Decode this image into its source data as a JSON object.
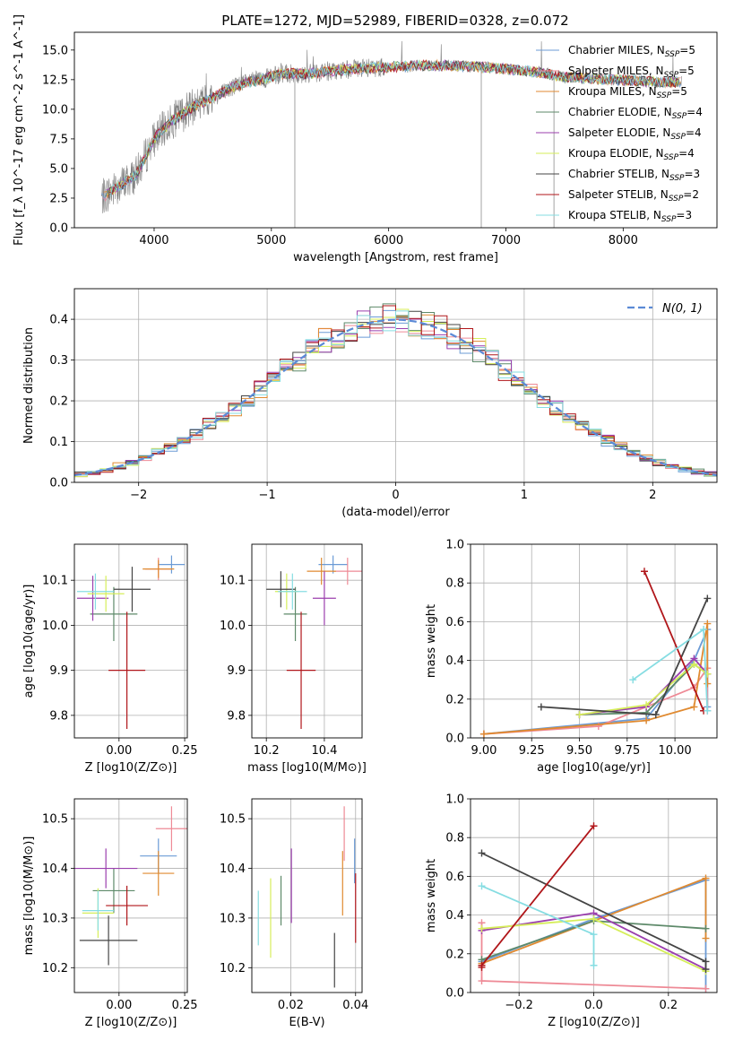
{
  "figure_title": "PLATE=1272, MJD=52989, FIBERID=0328, z=0.072",
  "series_names": [
    "Chabrier MILES, N_SSP=5",
    "Salpeter MILES, N_SSP=5",
    "Kroupa MILES, N_SSP=5",
    "Chabrier ELODIE, N_SSP=4",
    "Salpeter ELODIE, N_SSP=4",
    "Kroupa ELODIE, N_SSP=4",
    "Chabrier STELIB, N_SSP=3",
    "Salpeter STELIB, N_SSP=2",
    "Kroupa STELIB, N_SSP=3"
  ],
  "series_colors": [
    "#6b9bd6",
    "#ee8a96",
    "#e08a30",
    "#5e8a6a",
    "#9b3fae",
    "#d6ee5a",
    "#444444",
    "#b0161a",
    "#86dde2"
  ],
  "chart_data": [
    {
      "id": "spectrum",
      "type": "line",
      "title": "PLATE=1272, MJD=52989, FIBERID=0328, z=0.072",
      "xlabel": "wavelength [Angstrom, rest frame]",
      "ylabel": "Flux [f_λ 10^-17 erg cm^-2 s^-1 A^-1]",
      "xlim": [
        3320,
        8800
      ],
      "ylim": [
        0,
        16.5
      ],
      "xticks": [
        4000,
        5000,
        6000,
        7000,
        8000
      ],
      "yticks": [
        0.0,
        2.5,
        5.0,
        7.5,
        10.0,
        12.5,
        15.0
      ],
      "ytick_labels": [
        "0.0",
        "2.5",
        "5.0",
        "7.5",
        "10.0",
        "12.5",
        "15.0"
      ],
      "grid": false,
      "legend": "upper right",
      "x": [
        3550,
        3700,
        3850,
        4000,
        4150,
        4300,
        4500,
        4700,
        4900,
        5100,
        5300,
        5500,
        5700,
        5900,
        6100,
        6300,
        6500,
        6700,
        6900,
        7100,
        7300,
        7500,
        7700,
        7900,
        8100,
        8300,
        8500
      ],
      "y": [
        2.5,
        3.5,
        4.5,
        7.5,
        9.0,
        10.0,
        11.0,
        12.0,
        12.5,
        13.0,
        13.0,
        13.2,
        13.4,
        13.5,
        13.6,
        13.7,
        13.7,
        13.6,
        13.5,
        13.3,
        13.1,
        12.7,
        12.6,
        12.5,
        12.4,
        12.3,
        12.3
      ],
      "spikes": [
        {
          "x": 5200,
          "y": 0
        },
        {
          "x": 6790,
          "y": 0
        },
        {
          "x": 7410,
          "y": 0
        }
      ]
    },
    {
      "id": "residuals",
      "type": "line",
      "xlabel": "(data-model)/error",
      "ylabel": "Normed distribution",
      "xlim": [
        -2.5,
        2.5
      ],
      "ylim": [
        0,
        0.475
      ],
      "xticks": [
        -2,
        -1,
        0,
        1,
        2
      ],
      "xtick_labels": [
        "−2",
        "−1",
        "0",
        "1",
        "2"
      ],
      "yticks": [
        0.0,
        0.1,
        0.2,
        0.3,
        0.4
      ],
      "ytick_labels": [
        "0.0",
        "0.1",
        "0.2",
        "0.3",
        "0.4"
      ],
      "grid": true,
      "legend": "upper right",
      "gaussian_label": "N(0, 1)",
      "bins_from": -2.5,
      "bin_width": 0.1
    },
    {
      "id": "age_vs_Z",
      "type": "scatter",
      "xlabel": "Z [log10(Z/Z⊙)]",
      "ylabel": "age [log10(age/yr)]",
      "xlim": [
        -0.17,
        0.26
      ],
      "ylim": [
        9.75,
        10.18
      ],
      "xticks": [
        0.0,
        0.25
      ],
      "xtick_labels": [
        "0.00",
        "0.25"
      ],
      "yticks": [
        9.8,
        9.9,
        10.0,
        10.1
      ],
      "ytick_labels": [
        "9.8",
        "9.9",
        "10.0",
        "10.1"
      ],
      "grid": true,
      "points": [
        {
          "x": 0.2,
          "y": 10.135,
          "xerr": 0.05,
          "yerr": 0.02
        },
        {
          "x": 0.15,
          "y": 10.125,
          "xerr": 0.05,
          "yerr": 0.025
        },
        {
          "x": 0.15,
          "y": 10.125,
          "xerr": 0.06,
          "yerr": 0.02
        },
        {
          "x": -0.02,
          "y": 10.025,
          "xerr": 0.09,
          "yerr": 0.06
        },
        {
          "x": -0.1,
          "y": 10.06,
          "xerr": 0.06,
          "yerr": 0.05
        },
        {
          "x": -0.05,
          "y": 10.07,
          "xerr": 0.07,
          "yerr": 0.04
        },
        {
          "x": 0.05,
          "y": 10.08,
          "xerr": 0.07,
          "yerr": 0.05
        },
        {
          "x": 0.03,
          "y": 9.9,
          "xerr": 0.07,
          "yerr": 0.13
        },
        {
          "x": -0.09,
          "y": 10.075,
          "xerr": 0.07,
          "yerr": 0.04
        }
      ]
    },
    {
      "id": "age_vs_mass",
      "type": "scatter",
      "xlabel": "mass [log10(M/M⊙)]",
      "ylabel": "",
      "xlim": [
        10.15,
        10.53
      ],
      "ylim": [
        9.75,
        10.18
      ],
      "xticks": [
        10.2,
        10.4
      ],
      "xtick_labels": [
        "10.2",
        "10.4"
      ],
      "yticks": [
        9.8,
        9.9,
        10.0,
        10.1
      ],
      "ytick_labels": [
        "9.8",
        "9.9",
        "10.0",
        "10.1"
      ],
      "grid": true,
      "points": [
        {
          "x": 10.43,
          "y": 10.135,
          "xerr": 0.05,
          "yerr": 0.02
        },
        {
          "x": 10.48,
          "y": 10.12,
          "xerr": 0.05,
          "yerr": 0.03
        },
        {
          "x": 10.39,
          "y": 10.12,
          "xerr": 0.05,
          "yerr": 0.03
        },
        {
          "x": 10.3,
          "y": 10.025,
          "xerr": 0.04,
          "yerr": 0.06
        },
        {
          "x": 10.4,
          "y": 10.06,
          "xerr": 0.04,
          "yerr": 0.06
        },
        {
          "x": 10.27,
          "y": 10.075,
          "xerr": 0.04,
          "yerr": 0.04
        },
        {
          "x": 10.25,
          "y": 10.08,
          "xerr": 0.05,
          "yerr": 0.04
        },
        {
          "x": 10.32,
          "y": 9.9,
          "xerr": 0.05,
          "yerr": 0.13
        },
        {
          "x": 10.29,
          "y": 10.075,
          "xerr": 0.05,
          "yerr": 0.04
        }
      ]
    },
    {
      "id": "mass_weight_vs_age",
      "type": "line",
      "xlabel": "age [log10(age/yr)]",
      "ylabel": "mass weight",
      "xlim": [
        8.93,
        10.22
      ],
      "ylim": [
        0,
        1
      ],
      "xticks": [
        9.0,
        9.25,
        9.5,
        9.75,
        10.0
      ],
      "xtick_labels": [
        "9.00",
        "9.25",
        "9.50",
        "9.75",
        "10.00"
      ],
      "yticks": [
        0.0,
        0.2,
        0.4,
        0.6,
        0.8,
        1.0
      ],
      "ytick_labels": [
        "0.0",
        "0.2",
        "0.4",
        "0.6",
        "0.8",
        "1.0"
      ],
      "grid": true,
      "series": [
        {
          "x": [
            9.0,
            9.85,
            10.1,
            10.17,
            10.17
          ],
          "y": [
            0.02,
            0.1,
            0.4,
            0.56,
            0.16
          ]
        },
        {
          "x": [
            9.0,
            9.6,
            10.1,
            10.17,
            10.17
          ],
          "y": [
            0.02,
            0.06,
            0.26,
            0.36,
            0.14
          ]
        },
        {
          "x": [
            9.0,
            9.85,
            10.1,
            10.17,
            10.17
          ],
          "y": [
            0.02,
            0.09,
            0.16,
            0.59,
            0.28
          ]
        },
        {
          "x": [
            9.5,
            9.85,
            10.1,
            10.17
          ],
          "y": [
            0.12,
            0.13,
            0.38,
            0.33
          ]
        },
        {
          "x": [
            9.5,
            9.85,
            10.1,
            10.17
          ],
          "y": [
            0.12,
            0.16,
            0.41,
            0.33
          ]
        },
        {
          "x": [
            9.5,
            9.85,
            10.1,
            10.17
          ],
          "y": [
            0.12,
            0.17,
            0.38,
            0.33
          ]
        },
        {
          "x": [
            9.3,
            9.9,
            10.17
          ],
          "y": [
            0.16,
            0.12,
            0.72
          ]
        },
        {
          "x": [
            9.84,
            10.15
          ],
          "y": [
            0.86,
            0.14
          ]
        },
        {
          "x": [
            9.78,
            10.15,
            10.17
          ],
          "y": [
            0.3,
            0.56,
            0.14
          ]
        }
      ]
    },
    {
      "id": "mass_vs_Z",
      "type": "scatter",
      "xlabel": "Z [log10(Z/Z⊙)]",
      "ylabel": "mass [log10(M/M⊙)]",
      "xlim": [
        -0.17,
        0.26
      ],
      "ylim": [
        10.15,
        10.54
      ],
      "xticks": [
        0.0,
        0.25
      ],
      "xtick_labels": [
        "0.00",
        "0.25"
      ],
      "yticks": [
        10.2,
        10.3,
        10.4,
        10.5
      ],
      "ytick_labels": [
        "10.2",
        "10.3",
        "10.4",
        "10.5"
      ],
      "grid": true,
      "points": [
        {
          "x": 0.15,
          "y": 10.425,
          "xerr": 0.07,
          "yerr": 0.035
        },
        {
          "x": 0.2,
          "y": 10.48,
          "xerr": 0.06,
          "yerr": 0.045
        },
        {
          "x": 0.15,
          "y": 10.39,
          "xerr": 0.06,
          "yerr": 0.045
        },
        {
          "x": -0.02,
          "y": 10.355,
          "xerr": 0.08,
          "yerr": 0.045
        },
        {
          "x": -0.05,
          "y": 10.4,
          "xerr": 0.12,
          "yerr": 0.04
        },
        {
          "x": -0.08,
          "y": 10.31,
          "xerr": 0.06,
          "yerr": 0.05
        },
        {
          "x": -0.04,
          "y": 10.255,
          "xerr": 0.11,
          "yerr": 0.05
        },
        {
          "x": 0.03,
          "y": 10.325,
          "xerr": 0.08,
          "yerr": 0.04
        },
        {
          "x": -0.08,
          "y": 10.315,
          "xerr": 0.06,
          "yerr": 0.04
        }
      ]
    },
    {
      "id": "mass_vs_ebv",
      "type": "scatter",
      "xlabel": "E(B-V)",
      "ylabel": "",
      "xlim": [
        0.008,
        0.042
      ],
      "ylim": [
        10.15,
        10.54
      ],
      "xticks": [
        0.02,
        0.04
      ],
      "xtick_labels": [
        "0.02",
        "0.04"
      ],
      "yticks": [
        10.2,
        10.3,
        10.4,
        10.5
      ],
      "ytick_labels": [
        "10.2",
        "10.3",
        "10.4",
        "10.5"
      ],
      "grid": true,
      "points": [
        {
          "x": 0.0397,
          "y": 10.415,
          "xerr": 0,
          "yerr": 0.045
        },
        {
          "x": 0.0365,
          "y": 10.47,
          "xerr": 0,
          "yerr": 0.055
        },
        {
          "x": 0.036,
          "y": 10.37,
          "xerr": 0,
          "yerr": 0.065
        },
        {
          "x": 0.017,
          "y": 10.335,
          "xerr": 0,
          "yerr": 0.05
        },
        {
          "x": 0.0202,
          "y": 10.365,
          "xerr": 0,
          "yerr": 0.075
        },
        {
          "x": 0.0138,
          "y": 10.3,
          "xerr": 0,
          "yerr": 0.08
        },
        {
          "x": 0.0335,
          "y": 10.215,
          "xerr": 0,
          "yerr": 0.055
        },
        {
          "x": 0.04,
          "y": 10.32,
          "xerr": 0,
          "yerr": 0.07
        },
        {
          "x": 0.01,
          "y": 10.3,
          "xerr": 0,
          "yerr": 0.055
        }
      ]
    },
    {
      "id": "mass_weight_vs_Z",
      "type": "line",
      "xlabel": "Z [log10(Z/Z⊙)]",
      "ylabel": "mass weight",
      "xlim": [
        -0.33,
        0.33
      ],
      "ylim": [
        0,
        1
      ],
      "xticks": [
        -0.2,
        0.0,
        0.2
      ],
      "xtick_labels": [
        "−0.2",
        "0.0",
        "0.2"
      ],
      "yticks": [
        0.0,
        0.2,
        0.4,
        0.6,
        0.8,
        1.0
      ],
      "ytick_labels": [
        "0.0",
        "0.2",
        "0.4",
        "0.6",
        "0.8",
        "1.0"
      ],
      "grid": true,
      "series": [
        {
          "x": [
            -0.3,
            0.0,
            0.3,
            0.3
          ],
          "y": [
            0.16,
            0.38,
            0.58,
            0.02
          ]
        },
        {
          "x": [
            -0.3,
            -0.3,
            0.3
          ],
          "y": [
            0.36,
            0.06,
            0.02
          ]
        },
        {
          "x": [
            -0.3,
            0.3,
            0.3
          ],
          "y": [
            0.15,
            0.59,
            0.28
          ]
        },
        {
          "x": [
            -0.3,
            0.0,
            0.3
          ],
          "y": [
            0.17,
            0.37,
            0.33
          ]
        },
        {
          "x": [
            -0.3,
            0.0,
            0.3
          ],
          "y": [
            0.32,
            0.41,
            0.12
          ]
        },
        {
          "x": [
            -0.3,
            0.0,
            0.3
          ],
          "y": [
            0.33,
            0.38,
            0.11
          ]
        },
        {
          "x": [
            -0.3,
            0.3,
            0.3
          ],
          "y": [
            0.72,
            0.16,
            0.12
          ]
        },
        {
          "x": [
            -0.3,
            -0.3,
            0.0
          ],
          "y": [
            0.13,
            0.14,
            0.86
          ]
        },
        {
          "x": [
            -0.3,
            0.0,
            0.0
          ],
          "y": [
            0.55,
            0.3,
            0.14
          ]
        }
      ]
    }
  ]
}
